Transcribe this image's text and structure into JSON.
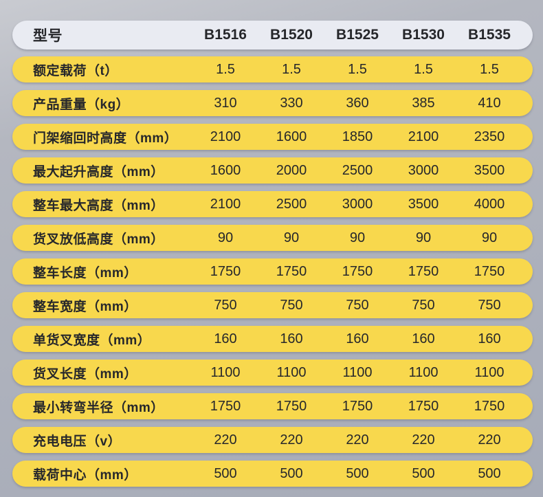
{
  "colors": {
    "background_gray": "#aeb2bc",
    "header_row_bg": "#e9ebf2",
    "spec_row_yellow": "#f8d84d",
    "text": "#26272b"
  },
  "table": {
    "header": {
      "label": "型号",
      "models": [
        "B1516",
        "B1520",
        "B1525",
        "B1530",
        "B1535"
      ]
    },
    "rows": [
      {
        "label": "额定载荷（t）",
        "values": [
          "1.5",
          "1.5",
          "1.5",
          "1.5",
          "1.5"
        ]
      },
      {
        "label": "产品重量（kg）",
        "values": [
          "310",
          "330",
          "360",
          "385",
          "410"
        ]
      },
      {
        "label": "门架缩回时高度（mm）",
        "values": [
          "2100",
          "1600",
          "1850",
          "2100",
          "2350"
        ]
      },
      {
        "label": "最大起升高度（mm）",
        "values": [
          "1600",
          "2000",
          "2500",
          "3000",
          "3500"
        ]
      },
      {
        "label": "整车最大高度（mm）",
        "values": [
          "2100",
          "2500",
          "3000",
          "3500",
          "4000"
        ]
      },
      {
        "label": "货叉放低高度（mm）",
        "values": [
          "90",
          "90",
          "90",
          "90",
          "90"
        ]
      },
      {
        "label": "整车长度（mm）",
        "values": [
          "1750",
          "1750",
          "1750",
          "1750",
          "1750"
        ]
      },
      {
        "label": "整车宽度（mm）",
        "values": [
          "750",
          "750",
          "750",
          "750",
          "750"
        ]
      },
      {
        "label": "单货叉宽度（mm）",
        "values": [
          "160",
          "160",
          "160",
          "160",
          "160"
        ]
      },
      {
        "label": "货叉长度（mm）",
        "values": [
          "1100",
          "1100",
          "1100",
          "1100",
          "1100"
        ]
      },
      {
        "label": "最小转弯半径（mm）",
        "values": [
          "1750",
          "1750",
          "1750",
          "1750",
          "1750"
        ]
      },
      {
        "label": "充电电压（v）",
        "values": [
          "220",
          "220",
          "220",
          "220",
          "220"
        ]
      },
      {
        "label": "载荷中心（mm）",
        "values": [
          "500",
          "500",
          "500",
          "500",
          "500"
        ]
      }
    ]
  }
}
